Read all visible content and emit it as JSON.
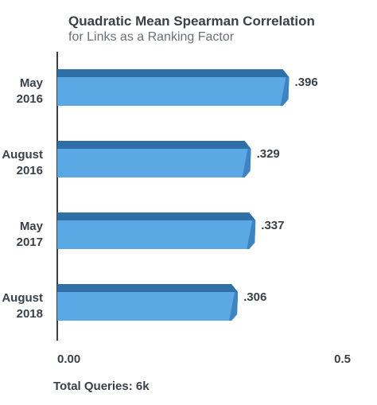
{
  "title": "Quadratic Mean Spearman Correlation",
  "subtitle": "for Links as a Ranking Factor",
  "footer": "Total Queries: 6k",
  "colors": {
    "bar_front": "#5aa8e4",
    "bar_top": "#2f6fa8",
    "bar_side": "#3d84c0",
    "axis": "#3a3f48",
    "text": "#3a3f48"
  },
  "chart_data": {
    "type": "bar",
    "orientation": "horizontal",
    "title": "Quadratic Mean Spearman Correlation",
    "subtitle": "for Links as a Ranking Factor",
    "categories": [
      [
        "May",
        "2016"
      ],
      [
        "August",
        "2016"
      ],
      [
        "May",
        "2017"
      ],
      [
        "August",
        "2018"
      ]
    ],
    "values": [
      0.396,
      0.329,
      0.337,
      0.306
    ],
    "data_labels": [
      ".396",
      ".329",
      ".337",
      ".306"
    ],
    "xlim": [
      0,
      0.5
    ],
    "x_tick_labels": [
      "0.00",
      "0.5"
    ],
    "xlabel": "",
    "ylabel": "",
    "grid": false,
    "legend": "none"
  }
}
